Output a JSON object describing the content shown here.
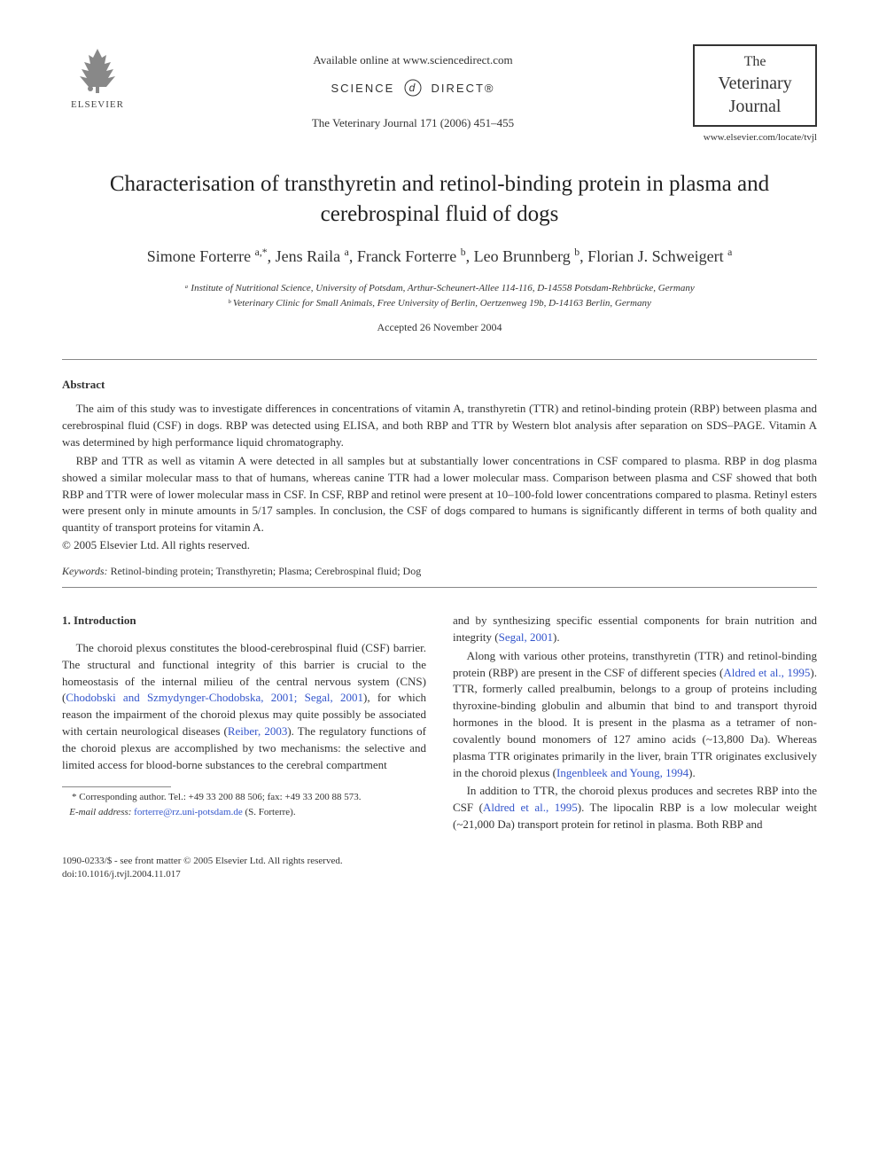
{
  "header": {
    "available_text": "Available online at www.sciencedirect.com",
    "sciencedirect_left": "SCIENCE",
    "sciencedirect_right": "DIRECT®",
    "journal_ref": "The Veterinary Journal 171 (2006) 451–455",
    "elsevier_label": "ELSEVIER",
    "journal_logo_the": "The",
    "journal_logo_name": "Veterinary Journal",
    "site_url": "www.elsevier.com/locate/tvjl"
  },
  "article": {
    "title": "Characterisation of transthyretin and retinol-binding protein in plasma and cerebrospinal fluid of dogs",
    "authors_html": "Simone Forterre <sup>a,*</sup>, Jens Raila <sup>a</sup>, Franck Forterre <sup>b</sup>, Leo Brunnberg <sup>b</sup>, Florian J. Schweigert <sup>a</sup>",
    "affiliations": [
      "ᵃ Institute of Nutritional Science, University of Potsdam, Arthur-Scheunert-Allee 114-116, D-14558 Potsdam-Rehbrücke, Germany",
      "ᵇ Veterinary Clinic for Small Animals, Free University of Berlin, Oertzenweg 19b, D-14163 Berlin, Germany"
    ],
    "accepted": "Accepted 26 November 2004"
  },
  "abstract": {
    "heading": "Abstract",
    "paragraphs": [
      "The aim of this study was to investigate differences in concentrations of vitamin A, transthyretin (TTR) and retinol-binding protein (RBP) between plasma and cerebrospinal fluid (CSF) in dogs. RBP was detected using ELISA, and both RBP and TTR by Western blot analysis after separation on SDS–PAGE. Vitamin A was determined by high performance liquid chromatography.",
      "RBP and TTR as well as vitamin A were detected in all samples but at substantially lower concentrations in CSF compared to plasma. RBP in dog plasma showed a similar molecular mass to that of humans, whereas canine TTR had a lower molecular mass. Comparison between plasma and CSF showed that both RBP and TTR were of lower molecular mass in CSF. In CSF, RBP and retinol were present at 10–100-fold lower concentrations compared to plasma. Retinyl esters were present only in minute amounts in 5/17 samples. In conclusion, the CSF of dogs compared to humans is significantly different in terms of both quality and quantity of transport proteins for vitamin A."
    ],
    "copyright": "© 2005 Elsevier Ltd. All rights reserved.",
    "keywords_label": "Keywords:",
    "keywords": "Retinol-binding protein; Transthyretin; Plasma; Cerebrospinal fluid; Dog"
  },
  "body": {
    "section_heading": "1. Introduction",
    "left_col": [
      "The choroid plexus constitutes the blood-cerebrospinal fluid (CSF) barrier. The structural and functional integrity of this barrier is crucial to the homeostasis of the internal milieu of the central nervous system (CNS) (<span class=\"citation-link\">Chodobski and Szmydynger-Chodobska, 2001; Segal, 2001</span>), for which reason the impairment of the choroid plexus may quite possibly be associated with certain neurological diseases (<span class=\"citation-link\">Reiber, 2003</span>). The regulatory functions of the choroid plexus are accomplished by two mechanisms: the selective and limited access for blood-borne substances to the cerebral compartment"
    ],
    "right_col": [
      "and by synthesizing specific essential components for brain nutrition and integrity (<span class=\"citation-link\">Segal, 2001</span>).",
      "Along with various other proteins, transthyretin (TTR) and retinol-binding protein (RBP) are present in the CSF of different species (<span class=\"citation-link\">Aldred et al., 1995</span>). TTR, formerly called prealbumin, belongs to a group of proteins including thyroxine-binding globulin and albumin that bind to and transport thyroid hormones in the blood. It is present in the plasma as a tetramer of non-covalently bound monomers of 127 amino acids (~13,800 Da). Whereas plasma TTR originates primarily in the liver, brain TTR originates exclusively in the choroid plexus (<span class=\"citation-link\">Ingenbleek and Young, 1994</span>).",
      "In addition to TTR, the choroid plexus produces and secretes RBP into the CSF (<span class=\"citation-link\">Aldred et al., 1995</span>). The lipocalin RBP is a low molecular weight (~21,000 Da) transport protein for retinol in plasma. Both RBP and"
    ]
  },
  "footnotes": {
    "corresponding": "* Corresponding author. Tel.: +49 33 200 88 506; fax: +49 33 200 88 573.",
    "email_label": "E-mail address:",
    "email": "forterre@rz.uni-potsdam.de",
    "email_suffix": "(S. Forterre)."
  },
  "bottom": {
    "line1": "1090-0233/$ - see front matter © 2005 Elsevier Ltd. All rights reserved.",
    "line2": "doi:10.1016/j.tvjl.2004.11.017"
  },
  "colors": {
    "text": "#333333",
    "link": "#3355cc",
    "rule": "#888888",
    "background": "#ffffff"
  }
}
